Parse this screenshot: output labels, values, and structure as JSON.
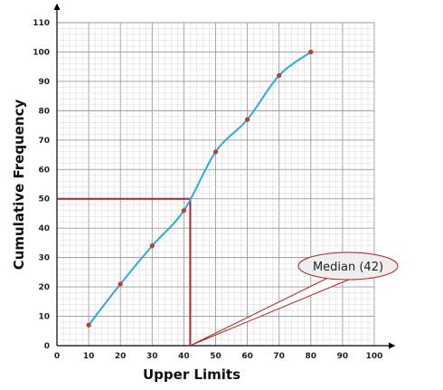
{
  "chart_data": {
    "type": "line",
    "xlabel": "Upper Limits",
    "ylabel": "Cumulative Frequency",
    "xlim": [
      0,
      100
    ],
    "ylim": [
      0,
      110
    ],
    "x_ticks": [
      0,
      10,
      20,
      30,
      40,
      50,
      60,
      70,
      80,
      90,
      100
    ],
    "y_ticks": [
      0,
      10,
      20,
      30,
      40,
      50,
      60,
      70,
      80,
      90,
      100,
      110
    ],
    "grid": true,
    "series": [
      {
        "x": [
          10,
          20,
          30,
          40,
          50,
          60,
          70,
          80
        ],
        "y": [
          7,
          21,
          34,
          46,
          66,
          77,
          92,
          100
        ],
        "color": "#29abe2",
        "marker_color": "#c0392b"
      }
    ],
    "median": {
      "x": 42,
      "y": 50,
      "color": "#b22222"
    },
    "annotations": [
      {
        "text": "Median (42)",
        "x": 42,
        "y": 0
      }
    ]
  }
}
